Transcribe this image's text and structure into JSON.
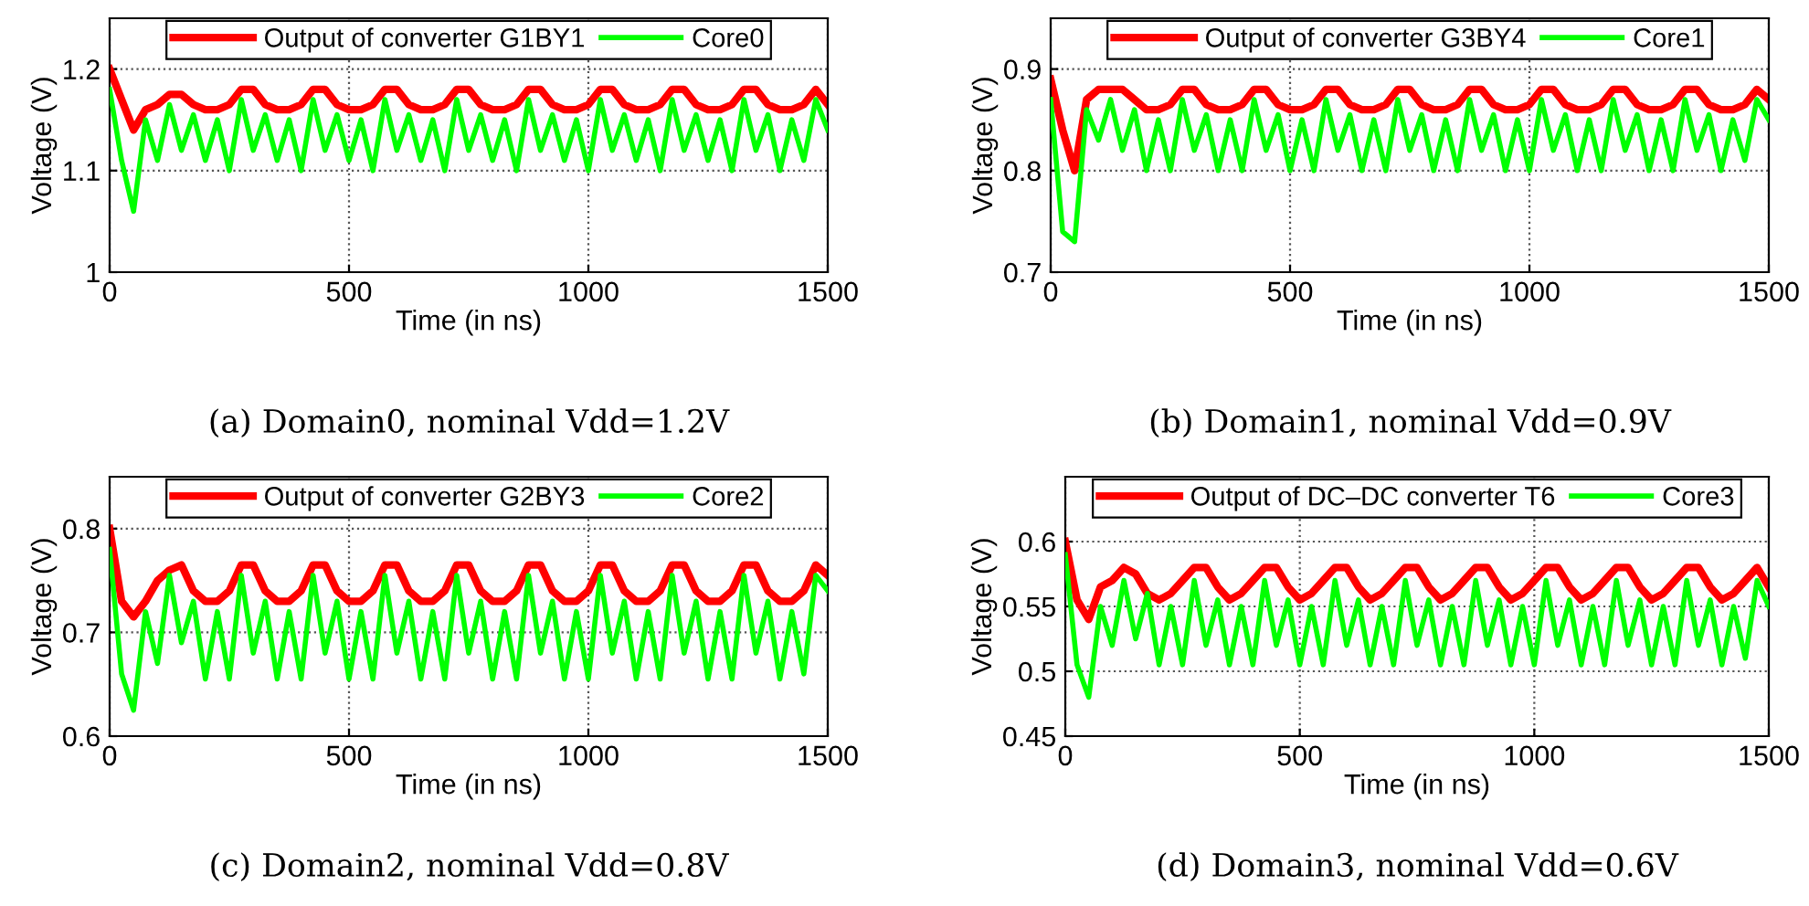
{
  "chart_data": [
    {
      "type": "line",
      "xlabel": "Time (in ns)",
      "ylabel": "Voltage (V)",
      "annotations": [
        "(a) Domain0, nominal Vdd=1.2V"
      ],
      "xlim": [
        0,
        1500
      ],
      "xticks": [
        0,
        500,
        1000,
        1500
      ],
      "ylim": [
        1,
        1.25
      ],
      "yticks": [
        1,
        1.1,
        1.2
      ],
      "grid": true,
      "legend": "top",
      "line_style": "solid",
      "marker": "none",
      "x": [
        0,
        25,
        50,
        75,
        100,
        125,
        150,
        175,
        200,
        225,
        250,
        275,
        300,
        325,
        350,
        375,
        400,
        425,
        450,
        475,
        500,
        525,
        550,
        575,
        600,
        625,
        650,
        675,
        700,
        725,
        750,
        775,
        800,
        825,
        850,
        875,
        900,
        925,
        950,
        975,
        1000,
        1025,
        1050,
        1075,
        1100,
        1125,
        1150,
        1175,
        1200,
        1225,
        1250,
        1275,
        1300,
        1325,
        1350,
        1375,
        1400,
        1425,
        1450,
        1475,
        1500
      ],
      "series": [
        {
          "name": "Output of converter G1BY1",
          "color": "#ff0000",
          "values": [
            1.2,
            1.17,
            1.14,
            1.16,
            1.165,
            1.175,
            1.175,
            1.165,
            1.16,
            1.16,
            1.165,
            1.18,
            1.18,
            1.165,
            1.16,
            1.16,
            1.165,
            1.18,
            1.18,
            1.165,
            1.16,
            1.16,
            1.165,
            1.18,
            1.18,
            1.165,
            1.16,
            1.16,
            1.165,
            1.18,
            1.18,
            1.165,
            1.16,
            1.16,
            1.165,
            1.18,
            1.18,
            1.165,
            1.16,
            1.16,
            1.165,
            1.18,
            1.18,
            1.165,
            1.16,
            1.16,
            1.165,
            1.18,
            1.18,
            1.165,
            1.16,
            1.16,
            1.165,
            1.18,
            1.18,
            1.165,
            1.16,
            1.16,
            1.165,
            1.18,
            1.165
          ]
        },
        {
          "name": "Core0",
          "color": "#00ff00",
          "values": [
            1.18,
            1.11,
            1.06,
            1.15,
            1.11,
            1.165,
            1.12,
            1.155,
            1.11,
            1.15,
            1.1,
            1.17,
            1.12,
            1.155,
            1.11,
            1.15,
            1.1,
            1.17,
            1.12,
            1.155,
            1.11,
            1.15,
            1.1,
            1.17,
            1.12,
            1.155,
            1.11,
            1.15,
            1.1,
            1.17,
            1.12,
            1.155,
            1.11,
            1.15,
            1.1,
            1.17,
            1.12,
            1.155,
            1.11,
            1.15,
            1.1,
            1.17,
            1.12,
            1.155,
            1.11,
            1.15,
            1.1,
            1.17,
            1.12,
            1.155,
            1.11,
            1.15,
            1.1,
            1.17,
            1.12,
            1.155,
            1.1,
            1.15,
            1.11,
            1.17,
            1.14
          ]
        }
      ]
    },
    {
      "type": "line",
      "xlabel": "Time (in ns)",
      "ylabel": "Voltage (V)",
      "annotations": [
        "(b) Domain1, nominal Vdd=0.9V"
      ],
      "xlim": [
        0,
        1500
      ],
      "xticks": [
        0,
        500,
        1000,
        1500
      ],
      "ylim": [
        0.7,
        0.95
      ],
      "yticks": [
        0.7,
        0.8,
        0.9
      ],
      "grid": true,
      "legend": "top",
      "line_style": "solid",
      "marker": "none",
      "x": [
        0,
        25,
        50,
        75,
        100,
        125,
        150,
        175,
        200,
        225,
        250,
        275,
        300,
        325,
        350,
        375,
        400,
        425,
        450,
        475,
        500,
        525,
        550,
        575,
        600,
        625,
        650,
        675,
        700,
        725,
        750,
        775,
        800,
        825,
        850,
        875,
        900,
        925,
        950,
        975,
        1000,
        1025,
        1050,
        1075,
        1100,
        1125,
        1150,
        1175,
        1200,
        1225,
        1250,
        1275,
        1300,
        1325,
        1350,
        1375,
        1400,
        1425,
        1450,
        1475,
        1500
      ],
      "series": [
        {
          "name": "Output of converter G3BY4",
          "color": "#ff0000",
          "values": [
            0.89,
            0.84,
            0.8,
            0.87,
            0.88,
            0.88,
            0.88,
            0.87,
            0.86,
            0.86,
            0.865,
            0.88,
            0.88,
            0.865,
            0.86,
            0.86,
            0.865,
            0.88,
            0.88,
            0.865,
            0.86,
            0.86,
            0.865,
            0.88,
            0.88,
            0.865,
            0.86,
            0.86,
            0.865,
            0.88,
            0.88,
            0.865,
            0.86,
            0.86,
            0.865,
            0.88,
            0.88,
            0.865,
            0.86,
            0.86,
            0.865,
            0.88,
            0.88,
            0.865,
            0.86,
            0.86,
            0.865,
            0.88,
            0.88,
            0.865,
            0.86,
            0.86,
            0.865,
            0.88,
            0.88,
            0.865,
            0.86,
            0.86,
            0.865,
            0.88,
            0.87
          ]
        },
        {
          "name": "Core1",
          "color": "#00ff00",
          "values": [
            0.87,
            0.74,
            0.73,
            0.86,
            0.83,
            0.87,
            0.82,
            0.86,
            0.8,
            0.85,
            0.8,
            0.87,
            0.82,
            0.855,
            0.8,
            0.85,
            0.8,
            0.87,
            0.82,
            0.855,
            0.8,
            0.85,
            0.8,
            0.87,
            0.82,
            0.855,
            0.8,
            0.85,
            0.8,
            0.87,
            0.82,
            0.855,
            0.8,
            0.85,
            0.8,
            0.87,
            0.82,
            0.855,
            0.8,
            0.85,
            0.8,
            0.87,
            0.82,
            0.855,
            0.8,
            0.85,
            0.8,
            0.87,
            0.82,
            0.855,
            0.8,
            0.85,
            0.8,
            0.87,
            0.82,
            0.855,
            0.8,
            0.85,
            0.81,
            0.87,
            0.85
          ]
        }
      ]
    },
    {
      "type": "line",
      "xlabel": "Time (in ns)",
      "ylabel": "Voltage (V)",
      "annotations": [
        "(c) Domain2, nominal Vdd=0.8V"
      ],
      "xlim": [
        0,
        1500
      ],
      "xticks": [
        0,
        500,
        1000,
        1500
      ],
      "ylim": [
        0.6,
        0.85
      ],
      "yticks": [
        0.6,
        0.7,
        0.8
      ],
      "grid": true,
      "legend": "top",
      "line_style": "solid",
      "marker": "none",
      "x": [
        0,
        25,
        50,
        75,
        100,
        125,
        150,
        175,
        200,
        225,
        250,
        275,
        300,
        325,
        350,
        375,
        400,
        425,
        450,
        475,
        500,
        525,
        550,
        575,
        600,
        625,
        650,
        675,
        700,
        725,
        750,
        775,
        800,
        825,
        850,
        875,
        900,
        925,
        950,
        975,
        1000,
        1025,
        1050,
        1075,
        1100,
        1125,
        1150,
        1175,
        1200,
        1225,
        1250,
        1275,
        1300,
        1325,
        1350,
        1375,
        1400,
        1425,
        1450,
        1475,
        1500
      ],
      "series": [
        {
          "name": "Output of converter G2BY3",
          "color": "#ff0000",
          "values": [
            0.8,
            0.73,
            0.715,
            0.73,
            0.75,
            0.76,
            0.765,
            0.74,
            0.73,
            0.73,
            0.74,
            0.765,
            0.765,
            0.74,
            0.73,
            0.73,
            0.74,
            0.765,
            0.765,
            0.74,
            0.73,
            0.73,
            0.74,
            0.765,
            0.765,
            0.74,
            0.73,
            0.73,
            0.74,
            0.765,
            0.765,
            0.74,
            0.73,
            0.73,
            0.74,
            0.765,
            0.765,
            0.74,
            0.73,
            0.73,
            0.74,
            0.765,
            0.765,
            0.74,
            0.73,
            0.73,
            0.74,
            0.765,
            0.765,
            0.74,
            0.73,
            0.73,
            0.74,
            0.765,
            0.765,
            0.74,
            0.73,
            0.73,
            0.74,
            0.765,
            0.755
          ]
        },
        {
          "name": "Core2",
          "color": "#00ff00",
          "values": [
            0.78,
            0.66,
            0.625,
            0.72,
            0.67,
            0.755,
            0.69,
            0.73,
            0.655,
            0.72,
            0.655,
            0.755,
            0.68,
            0.73,
            0.655,
            0.72,
            0.655,
            0.755,
            0.68,
            0.73,
            0.655,
            0.72,
            0.655,
            0.755,
            0.68,
            0.73,
            0.655,
            0.72,
            0.655,
            0.755,
            0.68,
            0.73,
            0.655,
            0.72,
            0.655,
            0.755,
            0.68,
            0.73,
            0.655,
            0.72,
            0.655,
            0.755,
            0.68,
            0.73,
            0.655,
            0.72,
            0.655,
            0.755,
            0.68,
            0.73,
            0.655,
            0.72,
            0.655,
            0.755,
            0.68,
            0.73,
            0.655,
            0.72,
            0.66,
            0.755,
            0.74
          ]
        }
      ]
    },
    {
      "type": "line",
      "xlabel": "Time (in ns)",
      "ylabel": "Voltage (V)",
      "annotations": [
        "(d) Domain3, nominal Vdd=0.6V"
      ],
      "xlim": [
        0,
        1500
      ],
      "xticks": [
        0,
        500,
        1000,
        1500
      ],
      "ylim": [
        0.45,
        0.65
      ],
      "yticks": [
        0.45,
        0.5,
        0.55,
        0.6
      ],
      "grid": true,
      "legend": "top",
      "line_style": "solid",
      "marker": "none",
      "x": [
        0,
        25,
        50,
        75,
        100,
        125,
        150,
        175,
        200,
        225,
        250,
        275,
        300,
        325,
        350,
        375,
        400,
        425,
        450,
        475,
        500,
        525,
        550,
        575,
        600,
        625,
        650,
        675,
        700,
        725,
        750,
        775,
        800,
        825,
        850,
        875,
        900,
        925,
        950,
        975,
        1000,
        1025,
        1050,
        1075,
        1100,
        1125,
        1150,
        1175,
        1200,
        1225,
        1250,
        1275,
        1300,
        1325,
        1350,
        1375,
        1400,
        1425,
        1450,
        1475,
        1500
      ],
      "series": [
        {
          "name": "Output of DC–DC converter T6",
          "color": "#ff0000",
          "values": [
            0.6,
            0.555,
            0.54,
            0.565,
            0.57,
            0.58,
            0.575,
            0.56,
            0.555,
            0.56,
            0.57,
            0.58,
            0.58,
            0.565,
            0.555,
            0.56,
            0.57,
            0.58,
            0.58,
            0.565,
            0.555,
            0.56,
            0.57,
            0.58,
            0.58,
            0.565,
            0.555,
            0.56,
            0.57,
            0.58,
            0.58,
            0.565,
            0.555,
            0.56,
            0.57,
            0.58,
            0.58,
            0.565,
            0.555,
            0.56,
            0.57,
            0.58,
            0.58,
            0.565,
            0.555,
            0.56,
            0.57,
            0.58,
            0.58,
            0.565,
            0.555,
            0.56,
            0.57,
            0.58,
            0.58,
            0.565,
            0.555,
            0.56,
            0.57,
            0.58,
            0.565
          ]
        },
        {
          "name": "Core3",
          "color": "#00ff00",
          "values": [
            0.59,
            0.505,
            0.48,
            0.55,
            0.52,
            0.57,
            0.525,
            0.56,
            0.505,
            0.55,
            0.505,
            0.57,
            0.52,
            0.555,
            0.505,
            0.55,
            0.505,
            0.57,
            0.52,
            0.555,
            0.505,
            0.55,
            0.505,
            0.57,
            0.52,
            0.555,
            0.505,
            0.55,
            0.505,
            0.57,
            0.52,
            0.555,
            0.505,
            0.55,
            0.505,
            0.57,
            0.52,
            0.555,
            0.505,
            0.55,
            0.505,
            0.57,
            0.52,
            0.555,
            0.505,
            0.55,
            0.505,
            0.57,
            0.52,
            0.555,
            0.505,
            0.55,
            0.505,
            0.57,
            0.52,
            0.555,
            0.505,
            0.55,
            0.51,
            0.57,
            0.55
          ]
        }
      ]
    }
  ]
}
